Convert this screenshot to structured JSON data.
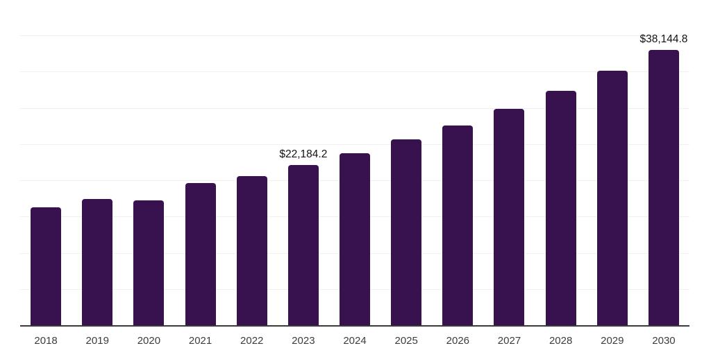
{
  "chart_data": {
    "type": "bar",
    "title": "",
    "xlabel": "",
    "ylabel": "",
    "categories": [
      "2018",
      "2019",
      "2020",
      "2021",
      "2022",
      "2023",
      "2024",
      "2025",
      "2026",
      "2027",
      "2028",
      "2029",
      "2030"
    ],
    "values": [
      16400,
      17500,
      17300,
      19700,
      20650,
      22184.2,
      23850,
      25750,
      27700,
      30000,
      32450,
      35200,
      38144.8
    ],
    "data_labels": [
      "",
      "",
      "",
      "",
      "",
      "$22,184.2",
      "",
      "",
      "",
      "",
      "",
      "",
      "$38,144.8"
    ],
    "ylim": [
      0,
      45000
    ],
    "gridline_step": 5000,
    "grid": true,
    "legend_position": "none",
    "y_tick_labels_visible": false,
    "colors": {
      "bar": "#38114f",
      "gridline": "#f0f0f2",
      "axis_line": "#3a3a3a",
      "x_tick_label": "#3d3d3d",
      "data_label": "#111111",
      "background": "#ffffff"
    }
  }
}
